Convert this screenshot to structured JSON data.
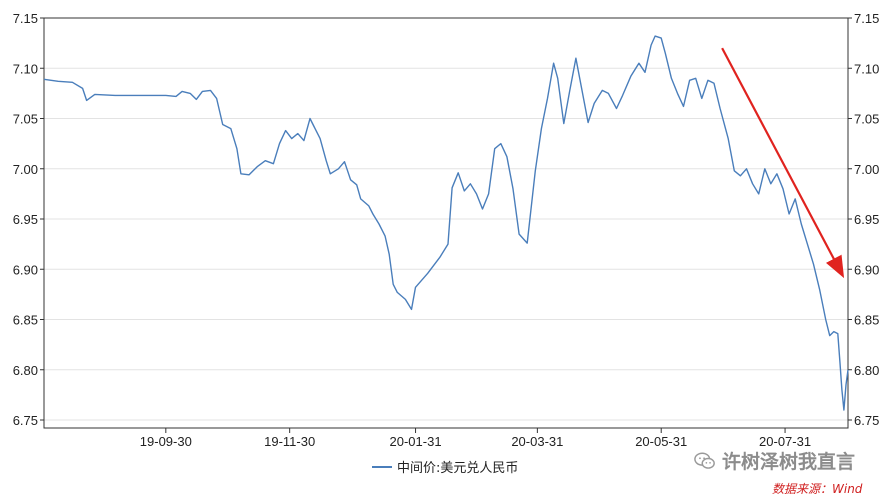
{
  "chart_data": {
    "type": "line",
    "x_ticks": [
      "19-09-30",
      "19-11-30",
      "20-01-31",
      "20-03-31",
      "20-05-31",
      "20-07-31"
    ],
    "y_ticks": [
      "7.15",
      "7.10",
      "7.05",
      "7.00",
      "6.95",
      "6.90",
      "6.85",
      "6.80",
      "6.75"
    ],
    "ylim": [
      6.75,
      7.15
    ],
    "xlim": [
      "2019-08-01",
      "2020-08-31"
    ],
    "grid": "horizontal",
    "series": [
      {
        "name": "中间价:美元兑人民币",
        "color": "#4a7ebb",
        "points": [
          [
            "2019-08-01",
            7.089
          ],
          [
            "2019-08-08",
            7.087
          ],
          [
            "2019-08-15",
            7.086
          ],
          [
            "2019-08-20",
            7.08
          ],
          [
            "2019-08-22",
            7.068
          ],
          [
            "2019-08-26",
            7.074
          ],
          [
            "2019-09-05",
            7.073
          ],
          [
            "2019-09-15",
            7.073
          ],
          [
            "2019-09-25",
            7.073
          ],
          [
            "2019-09-30",
            7.073
          ],
          [
            "2019-10-05",
            7.072
          ],
          [
            "2019-10-08",
            7.077
          ],
          [
            "2019-10-12",
            7.075
          ],
          [
            "2019-10-15",
            7.069
          ],
          [
            "2019-10-18",
            7.077
          ],
          [
            "2019-10-22",
            7.078
          ],
          [
            "2019-10-25",
            7.07
          ],
          [
            "2019-10-28",
            7.044
          ],
          [
            "2019-11-01",
            7.04
          ],
          [
            "2019-11-04",
            7.02
          ],
          [
            "2019-11-06",
            6.995
          ],
          [
            "2019-11-10",
            6.994
          ],
          [
            "2019-11-14",
            7.002
          ],
          [
            "2019-11-18",
            7.008
          ],
          [
            "2019-11-22",
            7.005
          ],
          [
            "2019-11-25",
            7.025
          ],
          [
            "2019-11-28",
            7.038
          ],
          [
            "2019-12-01",
            7.03
          ],
          [
            "2019-12-04",
            7.035
          ],
          [
            "2019-12-07",
            7.028
          ],
          [
            "2019-12-10",
            7.05
          ],
          [
            "2019-12-12",
            7.042
          ],
          [
            "2019-12-15",
            7.03
          ],
          [
            "2019-12-18",
            7.008
          ],
          [
            "2019-12-20",
            6.995
          ],
          [
            "2019-12-24",
            7.0
          ],
          [
            "2019-12-27",
            7.007
          ],
          [
            "2019-12-30",
            6.989
          ],
          [
            "2020-01-02",
            6.984
          ],
          [
            "2020-01-04",
            6.97
          ],
          [
            "2020-01-08",
            6.963
          ],
          [
            "2020-01-10",
            6.955
          ],
          [
            "2020-01-13",
            6.945
          ],
          [
            "2020-01-16",
            6.933
          ],
          [
            "2020-01-18",
            6.915
          ],
          [
            "2020-01-20",
            6.885
          ],
          [
            "2020-01-22",
            6.877
          ],
          [
            "2020-01-26",
            6.87
          ],
          [
            "2020-01-29",
            6.86
          ],
          [
            "2020-01-31",
            6.882
          ],
          [
            "2020-02-06",
            6.896
          ],
          [
            "2020-02-12",
            6.912
          ],
          [
            "2020-02-16",
            6.925
          ],
          [
            "2020-02-18",
            6.981
          ],
          [
            "2020-02-21",
            6.996
          ],
          [
            "2020-02-24",
            6.978
          ],
          [
            "2020-02-27",
            6.985
          ],
          [
            "2020-03-01",
            6.975
          ],
          [
            "2020-03-04",
            6.96
          ],
          [
            "2020-03-07",
            6.975
          ],
          [
            "2020-03-10",
            7.02
          ],
          [
            "2020-03-13",
            7.025
          ],
          [
            "2020-03-16",
            7.012
          ],
          [
            "2020-03-19",
            6.98
          ],
          [
            "2020-03-22",
            6.935
          ],
          [
            "2020-03-26",
            6.926
          ],
          [
            "2020-03-30",
            6.998
          ],
          [
            "2020-04-02",
            7.04
          ],
          [
            "2020-04-05",
            7.07
          ],
          [
            "2020-04-08",
            7.105
          ],
          [
            "2020-04-10",
            7.09
          ],
          [
            "2020-04-13",
            7.045
          ],
          [
            "2020-04-16",
            7.078
          ],
          [
            "2020-04-19",
            7.11
          ],
          [
            "2020-04-22",
            7.078
          ],
          [
            "2020-04-25",
            7.046
          ],
          [
            "2020-04-28",
            7.065
          ],
          [
            "2020-05-02",
            7.078
          ],
          [
            "2020-05-05",
            7.075
          ],
          [
            "2020-05-09",
            7.06
          ],
          [
            "2020-05-12",
            7.073
          ],
          [
            "2020-05-16",
            7.092
          ],
          [
            "2020-05-20",
            7.105
          ],
          [
            "2020-05-23",
            7.096
          ],
          [
            "2020-05-26",
            7.123
          ],
          [
            "2020-05-28",
            7.132
          ],
          [
            "2020-05-31",
            7.13
          ],
          [
            "2020-06-02",
            7.115
          ],
          [
            "2020-06-05",
            7.09
          ],
          [
            "2020-06-08",
            7.075
          ],
          [
            "2020-06-11",
            7.062
          ],
          [
            "2020-06-14",
            7.088
          ],
          [
            "2020-06-17",
            7.09
          ],
          [
            "2020-06-20",
            7.07
          ],
          [
            "2020-06-23",
            7.088
          ],
          [
            "2020-06-26",
            7.085
          ],
          [
            "2020-06-29",
            7.06
          ],
          [
            "2020-07-03",
            7.03
          ],
          [
            "2020-07-06",
            6.998
          ],
          [
            "2020-07-09",
            6.993
          ],
          [
            "2020-07-12",
            7.0
          ],
          [
            "2020-07-15",
            6.985
          ],
          [
            "2020-07-18",
            6.975
          ],
          [
            "2020-07-21",
            7.0
          ],
          [
            "2020-07-24",
            6.985
          ],
          [
            "2020-07-27",
            6.995
          ],
          [
            "2020-07-30",
            6.98
          ],
          [
            "2020-08-02",
            6.955
          ],
          [
            "2020-08-05",
            6.97
          ],
          [
            "2020-08-08",
            6.945
          ],
          [
            "2020-08-11",
            6.925
          ],
          [
            "2020-08-14",
            6.905
          ],
          [
            "2020-08-17",
            6.88
          ],
          [
            "2020-08-20",
            6.85
          ],
          [
            "2020-08-22",
            6.834
          ],
          [
            "2020-08-24",
            6.838
          ],
          [
            "2020-08-26",
            6.836
          ],
          [
            "2020-08-27",
            6.808
          ],
          [
            "2020-08-28",
            6.78
          ],
          [
            "2020-08-29",
            6.76
          ],
          [
            "2020-08-30",
            6.785
          ],
          [
            "2020-08-31",
            6.8
          ]
        ]
      }
    ],
    "annotations": [
      {
        "type": "arrow",
        "color": "#e0231f",
        "from": [
          "2020-06-30",
          7.12
        ],
        "to": [
          "2020-08-31",
          6.895
        ]
      }
    ]
  },
  "watermark": "许树泽树我直言",
  "source": "数据来源：Wind"
}
